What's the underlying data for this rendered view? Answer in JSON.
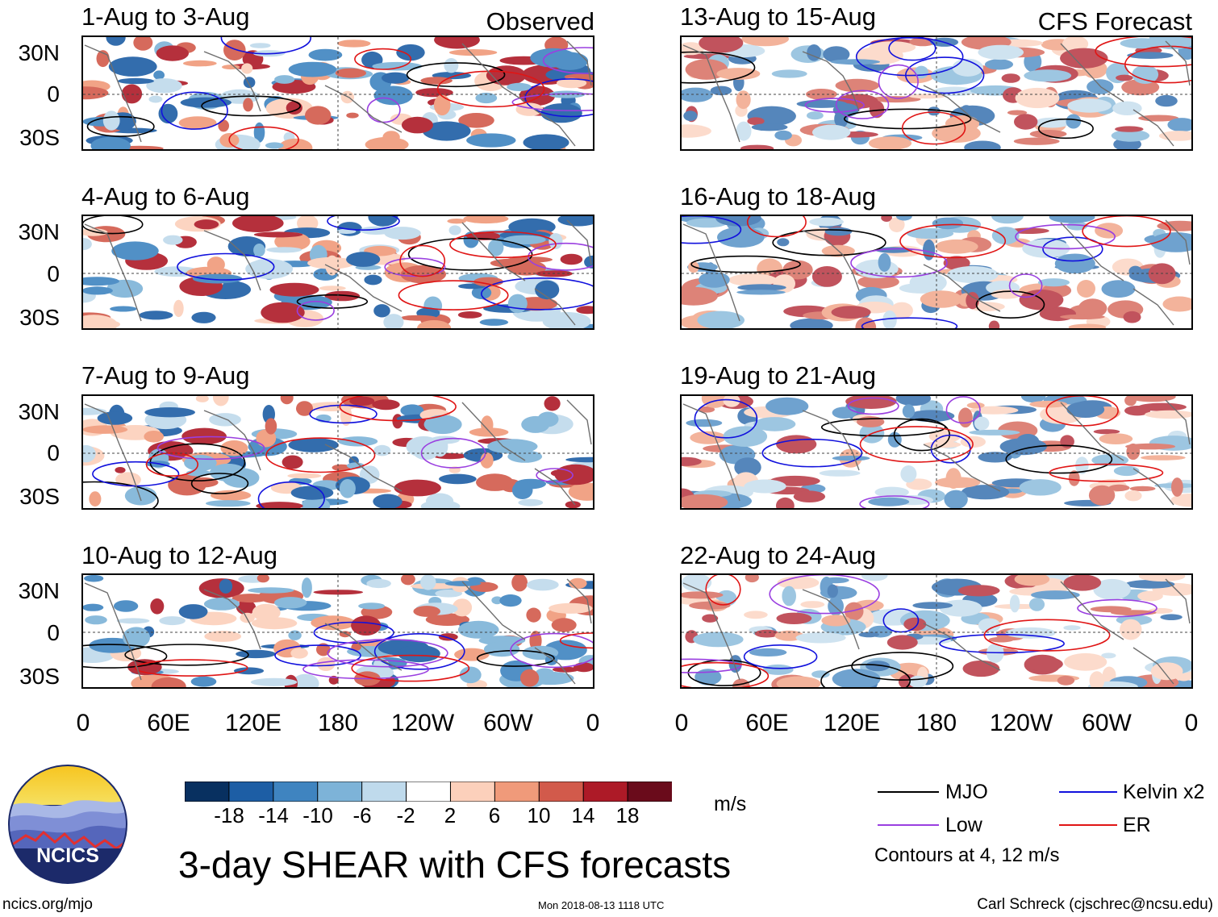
{
  "chart_data": {
    "type": "heatmap",
    "title": "3-day SHEAR with CFS forecasts",
    "columns": [
      {
        "label": "Observed",
        "panels": [
          "1-Aug to 3-Aug",
          "4-Aug to 6-Aug",
          "7-Aug to 9-Aug",
          "10-Aug to 12-Aug"
        ]
      },
      {
        "label": "CFS Forecast",
        "panels": [
          "13-Aug to 15-Aug",
          "16-Aug to 18-Aug",
          "19-Aug to 21-Aug",
          "22-Aug to 24-Aug"
        ]
      }
    ],
    "lat_ticks": [
      "30N",
      "0",
      "30S"
    ],
    "lat_values": [
      30,
      0,
      -30
    ],
    "lon_ticks": [
      "0",
      "60E",
      "120E",
      "180",
      "120W",
      "60W",
      "0"
    ],
    "lon_values": [
      0,
      60,
      120,
      180,
      240,
      300,
      360
    ],
    "colorbar": {
      "unit": "m/s",
      "labels": [
        "-18",
        "-14",
        "-10",
        "-6",
        "-2",
        "2",
        "6",
        "10",
        "14",
        "18"
      ],
      "colors": [
        "#083060",
        "#1d5ea5",
        "#3f84c0",
        "#7db3d8",
        "#bfdaec",
        "#ffffff",
        "#fcd0bb",
        "#f09a7a",
        "#d25a4b",
        "#ad1a27",
        "#6a0b1b"
      ]
    },
    "legend": {
      "items": [
        {
          "label": "MJO",
          "color": "#000000"
        },
        {
          "label": "Kelvin x2",
          "color": "#1111dd"
        },
        {
          "label": "Low",
          "color": "#9a3fe0"
        },
        {
          "label": "ER",
          "color": "#e01515"
        }
      ],
      "note": "Contours at 4, 12 m/s"
    }
  },
  "branding": {
    "logo_text": "NCICS",
    "url": "ncics.org/mjo",
    "timestamp": "Mon 2018-08-13 1118 UTC",
    "author": "Carl Schreck (cjschrec@ncsu.edu)"
  }
}
